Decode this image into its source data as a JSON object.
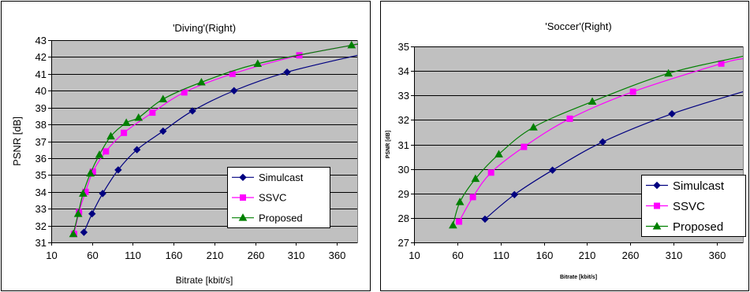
{
  "chart_data": [
    {
      "type": "line",
      "title": "'Diving'(Right)",
      "xlabel": "Bitrate [kbit/s]",
      "ylabel": "PSNR [dB]",
      "xlim": [
        10,
        385
      ],
      "ylim": [
        31,
        43
      ],
      "xticks": [
        10,
        60,
        110,
        160,
        210,
        260,
        310,
        360
      ],
      "yticks": [
        31,
        32,
        33,
        34,
        35,
        36,
        37,
        38,
        39,
        40,
        41,
        42,
        43
      ],
      "grid": "horizontal",
      "legend_position": "bottom-right",
      "series": [
        {
          "name": "Simulcast",
          "color": "#000080",
          "marker": "diamond",
          "x": [
            50,
            60,
            73,
            92,
            115,
            147,
            183,
            234,
            299
          ],
          "y": [
            31.6,
            32.7,
            33.9,
            35.3,
            36.5,
            37.6,
            38.8,
            40.0,
            41.1
          ],
          "curve_end": [
            385,
            42.1
          ]
        },
        {
          "name": "SSVC",
          "color": "#ff00ff",
          "marker": "square",
          "x": [
            38,
            44,
            52,
            61,
            77,
            99,
            134,
            173,
            232,
            314
          ],
          "y": [
            31.5,
            32.8,
            34.0,
            35.2,
            36.4,
            37.5,
            38.7,
            39.9,
            41.0,
            42.1
          ],
          "curve_end": [
            385,
            42.75
          ]
        },
        {
          "name": "Proposed",
          "color": "#008000",
          "marker": "triangle",
          "x": [
            37,
            43,
            49,
            58,
            69,
            83,
            102,
            117,
            147,
            194,
            263,
            378
          ],
          "y": [
            31.5,
            32.7,
            33.9,
            35.1,
            36.2,
            37.3,
            38.1,
            38.4,
            39.5,
            40.5,
            41.6,
            42.7
          ],
          "curve_end": [
            385,
            42.75
          ]
        }
      ]
    },
    {
      "type": "line",
      "title": "'Soccer'(Right)",
      "xlabel": "Bitrate [kbit/s]",
      "ylabel": "PSNR [dB]",
      "xlim": [
        10,
        390
      ],
      "ylim": [
        27,
        35
      ],
      "xticks": [
        10,
        60,
        110,
        160,
        210,
        260,
        310,
        360
      ],
      "yticks": [
        27,
        28,
        29,
        30,
        31,
        32,
        33,
        34,
        35
      ],
      "grid": "horizontal",
      "legend_position": "bottom-right",
      "series": [
        {
          "name": "Simulcast",
          "color": "#000080",
          "marker": "diamond",
          "x": [
            92,
            126,
            170,
            228,
            308
          ],
          "y": [
            27.95,
            28.95,
            29.95,
            31.1,
            32.25
          ],
          "curve_end": [
            390,
            33.15
          ]
        },
        {
          "name": "SSVC",
          "color": "#ff00ff",
          "marker": "square",
          "x": [
            62,
            78,
            99,
            137,
            190,
            263,
            365
          ],
          "y": [
            27.85,
            28.85,
            29.85,
            30.9,
            32.05,
            33.15,
            34.3
          ],
          "curve_end": [
            390,
            34.5
          ]
        },
        {
          "name": "Proposed",
          "color": "#008000",
          "marker": "triangle",
          "x": [
            55,
            63,
            81,
            108,
            148,
            216,
            304
          ],
          "y": [
            27.7,
            28.65,
            29.6,
            30.6,
            31.7,
            32.75,
            33.9
          ],
          "curve_end": [
            390,
            34.6
          ]
        }
      ]
    }
  ]
}
